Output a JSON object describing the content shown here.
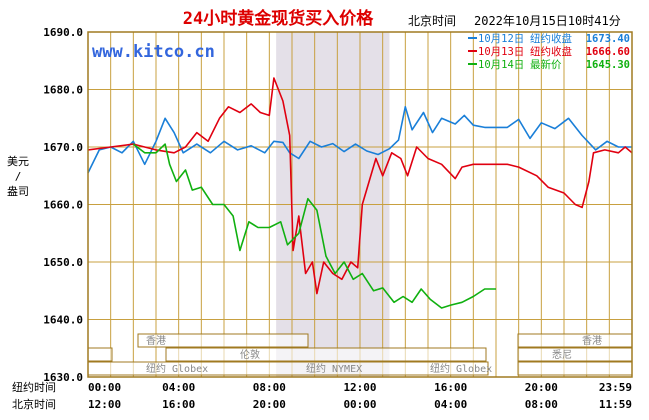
{
  "header": {
    "title": "24小时黄金现货买入价格",
    "timestamp_label": "北京时间",
    "timestamp_value": "2022年10月15日10时41分",
    "watermark": "www.kitco.cn"
  },
  "axis": {
    "y_unit_label": [
      "美元",
      "/",
      "盎司"
    ],
    "row_label_ny": "纽约时间",
    "row_label_bj": "北京时间"
  },
  "sessions": {
    "rows": [
      [
        "香港",
        "香港"
      ],
      [
        "伦敦"
      ],
      [
        "纽约 Globex",
        "纽约 NYMEX",
        "纽约 Globex"
      ],
      [
        "悉尼"
      ]
    ]
  },
  "colors": {
    "frame": "#a07a20",
    "grid": "#c8a040",
    "shade": "#e4e0e8",
    "blue": "#1a7fd8",
    "red": "#e00010",
    "green": "#10b010",
    "title": "#dd0000"
  },
  "chart_data": {
    "type": "line",
    "title": "24小时黄金现货买入价格",
    "ylabel": "美元/盎司",
    "ylim": [
      1630,
      1690
    ],
    "yticks": [
      "1630.0",
      "1640.0",
      "1650.0",
      "1660.0",
      "1670.0",
      "1680.0",
      "1690.0"
    ],
    "xlim": [
      0,
      24
    ],
    "xticks_ny": [
      "00:00",
      "04:00",
      "08:00",
      "12:00",
      "16:00",
      "20:00",
      "23:59"
    ],
    "xticks_bj": [
      "12:00",
      "16:00",
      "20:00",
      "00:00",
      "04:00",
      "08:00",
      "11:59"
    ],
    "shaded_range": [
      8.3,
      13.3
    ],
    "series": [
      {
        "name": "10月12日",
        "legend_label": "纽约收盘",
        "legend_value": "1673.40",
        "color": "#1a7fd8",
        "points": [
          [
            0,
            1665.5
          ],
          [
            0.5,
            1669.5
          ],
          [
            1,
            1670
          ],
          [
            1.5,
            1669
          ],
          [
            2,
            1671
          ],
          [
            2.5,
            1667
          ],
          [
            3,
            1671
          ],
          [
            3.4,
            1675
          ],
          [
            3.8,
            1672.5
          ],
          [
            4.2,
            1669
          ],
          [
            4.8,
            1670.5
          ],
          [
            5.4,
            1669
          ],
          [
            6,
            1671
          ],
          [
            6.6,
            1669.5
          ],
          [
            7.2,
            1670.2
          ],
          [
            7.8,
            1669
          ],
          [
            8.2,
            1671
          ],
          [
            8.6,
            1670.8
          ],
          [
            8.9,
            1669
          ],
          [
            9.3,
            1668
          ],
          [
            9.8,
            1671
          ],
          [
            10.3,
            1670
          ],
          [
            10.8,
            1670.6
          ],
          [
            11.3,
            1669.2
          ],
          [
            11.8,
            1670.5
          ],
          [
            12.3,
            1669.3
          ],
          [
            12.8,
            1668.7
          ],
          [
            13.3,
            1669.7
          ],
          [
            13.7,
            1671.2
          ],
          [
            14,
            1677
          ],
          [
            14.3,
            1673
          ],
          [
            14.8,
            1676
          ],
          [
            15.2,
            1672.5
          ],
          [
            15.6,
            1675
          ],
          [
            16.2,
            1674
          ],
          [
            16.6,
            1675.5
          ],
          [
            17,
            1673.8
          ],
          [
            17.5,
            1673.4
          ],
          [
            18.5,
            1673.4
          ],
          [
            19,
            1674.8
          ],
          [
            19.5,
            1671.5
          ],
          [
            20,
            1674.2
          ],
          [
            20.6,
            1673.2
          ],
          [
            21.2,
            1675
          ],
          [
            21.8,
            1672
          ],
          [
            22.4,
            1669.5
          ],
          [
            22.9,
            1671
          ],
          [
            23.4,
            1670
          ],
          [
            24,
            1670
          ]
        ]
      },
      {
        "name": "10月13日",
        "legend_label": "纽约收盘",
        "legend_value": "1666.60",
        "color": "#e00010",
        "points": [
          [
            0,
            1669.5
          ],
          [
            1,
            1670
          ],
          [
            2,
            1670.5
          ],
          [
            3,
            1669.5
          ],
          [
            3.8,
            1669
          ],
          [
            4.3,
            1670
          ],
          [
            4.8,
            1672.5
          ],
          [
            5.3,
            1671
          ],
          [
            5.8,
            1675
          ],
          [
            6.2,
            1677
          ],
          [
            6.7,
            1676
          ],
          [
            7.2,
            1677.5
          ],
          [
            7.6,
            1676
          ],
          [
            8,
            1675.5
          ],
          [
            8.2,
            1682
          ],
          [
            8.6,
            1678
          ],
          [
            8.9,
            1672
          ],
          [
            9.05,
            1652
          ],
          [
            9.3,
            1658
          ],
          [
            9.6,
            1648
          ],
          [
            9.9,
            1650
          ],
          [
            10.1,
            1644.5
          ],
          [
            10.4,
            1650
          ],
          [
            10.8,
            1648
          ],
          [
            11.2,
            1647
          ],
          [
            11.6,
            1650
          ],
          [
            11.9,
            1649
          ],
          [
            12.1,
            1660
          ],
          [
            12.4,
            1664
          ],
          [
            12.7,
            1668
          ],
          [
            13,
            1665
          ],
          [
            13.4,
            1669
          ],
          [
            13.8,
            1668
          ],
          [
            14.1,
            1665
          ],
          [
            14.5,
            1670
          ],
          [
            15,
            1668
          ],
          [
            15.6,
            1667
          ],
          [
            16.2,
            1664.5
          ],
          [
            16.5,
            1666.5
          ],
          [
            17,
            1667
          ],
          [
            18.5,
            1667
          ],
          [
            19,
            1666.5
          ],
          [
            19.8,
            1665
          ],
          [
            20.3,
            1663
          ],
          [
            21,
            1662
          ],
          [
            21.5,
            1660
          ],
          [
            21.8,
            1659.5
          ],
          [
            22.1,
            1664
          ],
          [
            22.3,
            1669
          ],
          [
            22.8,
            1669.5
          ],
          [
            23.4,
            1669
          ],
          [
            23.7,
            1670
          ],
          [
            24,
            1669
          ]
        ]
      },
      {
        "name": "10月14日",
        "legend_label": "最新价",
        "legend_value": "1645.30",
        "color": "#10b010",
        "points": [
          [
            2,
            1670.5
          ],
          [
            2.5,
            1669
          ],
          [
            3,
            1669
          ],
          [
            3.4,
            1670.5
          ],
          [
            3.6,
            1667
          ],
          [
            3.9,
            1664
          ],
          [
            4.3,
            1666
          ],
          [
            4.6,
            1662.5
          ],
          [
            5,
            1663
          ],
          [
            5.5,
            1660
          ],
          [
            6,
            1660
          ],
          [
            6.4,
            1658
          ],
          [
            6.7,
            1652
          ],
          [
            7.1,
            1657
          ],
          [
            7.5,
            1656
          ],
          [
            8,
            1656
          ],
          [
            8.5,
            1657
          ],
          [
            8.8,
            1653
          ],
          [
            9.3,
            1655
          ],
          [
            9.7,
            1661
          ],
          [
            10.1,
            1659
          ],
          [
            10.5,
            1651
          ],
          [
            10.9,
            1648
          ],
          [
            11.3,
            1650
          ],
          [
            11.7,
            1647
          ],
          [
            12.1,
            1648
          ],
          [
            12.6,
            1645
          ],
          [
            13,
            1645.5
          ],
          [
            13.5,
            1643
          ],
          [
            13.9,
            1644
          ],
          [
            14.3,
            1643
          ],
          [
            14.7,
            1645.3
          ],
          [
            15.1,
            1643.5
          ],
          [
            15.6,
            1642
          ],
          [
            16,
            1642.5
          ],
          [
            16.5,
            1643
          ],
          [
            17,
            1644
          ],
          [
            17.5,
            1645.3
          ],
          [
            18,
            1645.3
          ]
        ]
      }
    ]
  }
}
